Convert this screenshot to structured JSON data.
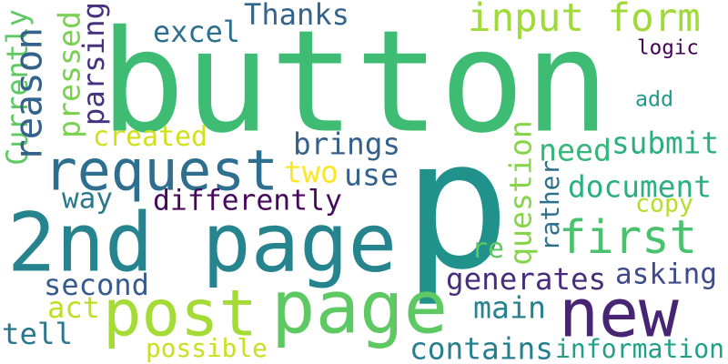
{
  "words": [
    {
      "text": "button",
      "color": "#3fbc73"
    },
    {
      "text": "p",
      "color": "#21918c"
    },
    {
      "text": "2nd page",
      "color": "#25848e"
    },
    {
      "text": "page",
      "color": "#5ec962"
    },
    {
      "text": "post",
      "color": "#a5db36"
    },
    {
      "text": "new",
      "color": "#482475"
    },
    {
      "text": "request",
      "color": "#2e6e8e"
    },
    {
      "text": "first",
      "color": "#4ac16d"
    },
    {
      "text": "input form",
      "color": "#a0da39"
    },
    {
      "text": "Thanks",
      "color": "#32648e"
    },
    {
      "text": "excel",
      "color": "#2e6e8e"
    },
    {
      "text": "logic",
      "color": "#440154"
    },
    {
      "text": "add",
      "color": "#1f9a8a"
    },
    {
      "text": "brings",
      "color": "#355f8d"
    },
    {
      "text": "created",
      "color": "#d0e11c"
    },
    {
      "text": "need",
      "color": "#35b779"
    },
    {
      "text": "submit",
      "color": "#29af7f"
    },
    {
      "text": "document",
      "color": "#2ab07f"
    },
    {
      "text": "two",
      "color": "#fde725"
    },
    {
      "text": "use",
      "color": "#33638d"
    },
    {
      "text": "differently",
      "color": "#46085c"
    },
    {
      "text": "way",
      "color": "#2a788e"
    },
    {
      "text": "copy",
      "color": "#b5de2b"
    },
    {
      "text": "second",
      "color": "#365c8d"
    },
    {
      "text": "generates",
      "color": "#472d7b"
    },
    {
      "text": "asking",
      "color": "#3e4a89"
    },
    {
      "text": "re",
      "color": "#5ec962"
    },
    {
      "text": "act",
      "color": "#bddf26"
    },
    {
      "text": "main",
      "color": "#26828e"
    },
    {
      "text": "tell",
      "color": "#2a788e"
    },
    {
      "text": "possible",
      "color": "#c8e020"
    },
    {
      "text": "contains",
      "color": "#277f8e"
    },
    {
      "text": "information",
      "color": "#1fa188"
    },
    {
      "text": "Currently",
      "color": "#5ec962"
    },
    {
      "text": "reason",
      "color": "#33638d"
    },
    {
      "text": "pressed",
      "color": "#7ad151"
    },
    {
      "text": "parsing",
      "color": "#46327e"
    },
    {
      "text": "question",
      "color": "#86d549"
    },
    {
      "text": "rather",
      "color": "#2d708e"
    }
  ]
}
